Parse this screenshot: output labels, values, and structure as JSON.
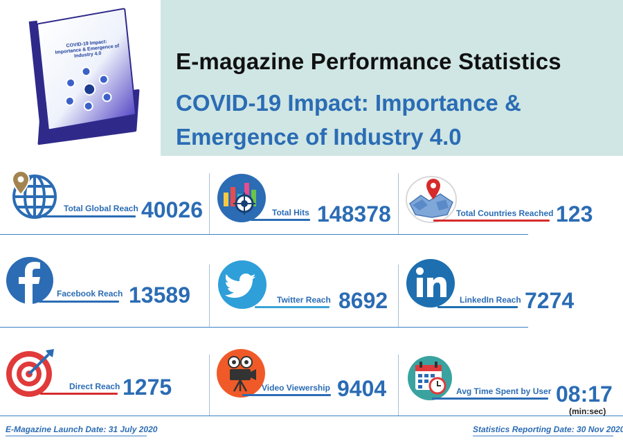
{
  "header": {
    "title": "E-magazine Performance Statistics",
    "subtitle": "COVID-19 Impact: Importance & Emergence of Industry 4.0",
    "book_cover_title": "COVID-19 Impact: Importance & Emergence of Industry 4.0"
  },
  "stats": {
    "global_reach": {
      "label": "Total Global Reach",
      "value": "40026",
      "icon": "globe-pin-icon"
    },
    "total_hits": {
      "label": "Total Hits",
      "value": "148378",
      "icon": "bar-chart-target-icon"
    },
    "countries": {
      "label": "Total Countries Reached",
      "value": "123",
      "icon": "map-pin-icon"
    },
    "facebook": {
      "label": "Facebook Reach",
      "value": "13589",
      "icon": "facebook-icon"
    },
    "twitter": {
      "label": "Twitter Reach",
      "value": "8692",
      "icon": "twitter-icon"
    },
    "linkedin": {
      "label": "LinkedIn Reach",
      "value": "7274",
      "icon": "linkedin-icon"
    },
    "direct": {
      "label": "Direct Reach",
      "value": "1275",
      "icon": "target-arrow-icon"
    },
    "video": {
      "label": "Video Viewership",
      "value": "9404",
      "icon": "film-camera-icon"
    },
    "avg_time": {
      "label": "Avg Time Spent by User",
      "value": "08:17",
      "unit": "(min:sec)",
      "icon": "calendar-clock-icon"
    }
  },
  "footer": {
    "launch_date": "E-Magazine Launch Date: 31 July 2020",
    "report_date": "Statistics Reporting Date: 30 Nov 2020"
  },
  "colors": {
    "accent_blue": "#2b6cb4",
    "header_bg": "#cfe6e4",
    "underline_blue": "#2b6cb4",
    "underline_red": "#d62b2b",
    "underline_light": "#3aa3d6"
  }
}
